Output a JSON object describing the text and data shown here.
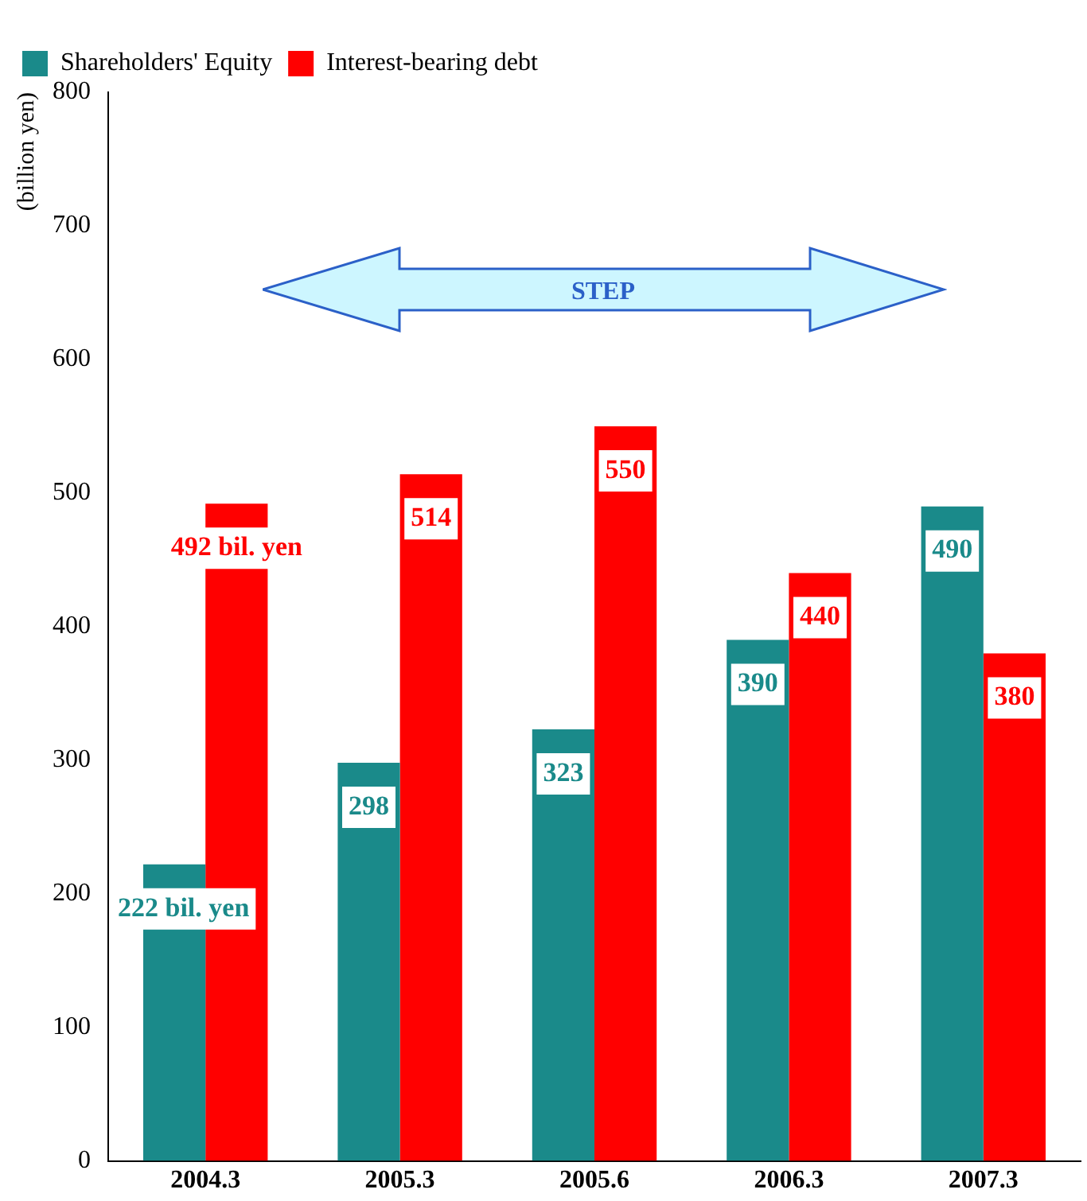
{
  "chart_data": {
    "type": "bar",
    "ylabel": "(billion yen)",
    "categories": [
      "2004.3",
      "2005.3",
      "2005.6",
      "2006.3",
      "2007.3"
    ],
    "series": [
      {
        "name": "Shareholders' Equity",
        "color": "#1a8a8a",
        "values": [
          222,
          298,
          323,
          390,
          490
        ],
        "value_labels": [
          "222 bil. yen",
          "298",
          "323",
          "390",
          "490"
        ]
      },
      {
        "name": "Interest-bearing debt",
        "color": "#ff0000",
        "values": [
          492,
          514,
          550,
          440,
          380
        ],
        "value_labels": [
          "492 bil. yen",
          "514",
          "550",
          "440",
          "380"
        ]
      }
    ],
    "ylim": [
      0,
      800
    ],
    "yticks": [
      0,
      100,
      200,
      300,
      400,
      500,
      600,
      700,
      800
    ],
    "grid": false,
    "legend": "top left",
    "annotations": [
      "STEP"
    ]
  }
}
